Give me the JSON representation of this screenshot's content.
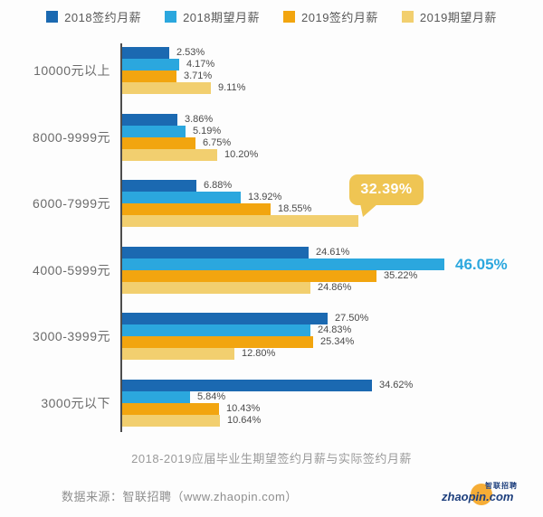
{
  "legend": {
    "items": [
      {
        "label": "2018签约月薪",
        "color": "#1B69B1"
      },
      {
        "label": "2018期望月薪",
        "color": "#2BA7DE"
      },
      {
        "label": "2019签约月薪",
        "color": "#F2A50F"
      },
      {
        "label": "2019期望月薪",
        "color": "#F2CF6F"
      }
    ]
  },
  "chart_data": {
    "type": "bar",
    "orientation": "horizontal",
    "title": "2018-2019应届毕业生期望签约月薪与实际签约月薪",
    "value_suffix": "%",
    "axis": "category-axis-left, no gridlines, value labels at bar ends",
    "categories": [
      "10000元以上",
      "8000-9999元",
      "6000-7999元",
      "4000-5999元",
      "3000-3999元",
      "3000元以下"
    ],
    "series": [
      {
        "name": "2018签约月薪",
        "color": "#1B69B1",
        "values": [
          2.53,
          3.86,
          6.88,
          24.61,
          27.5,
          34.62
        ]
      },
      {
        "name": "2018期望月薪",
        "color": "#2BA7DE",
        "values": [
          4.17,
          5.19,
          13.92,
          46.05,
          24.83,
          5.84
        ]
      },
      {
        "name": "2019签约月薪",
        "color": "#F2A50F",
        "values": [
          3.71,
          6.75,
          18.55,
          35.22,
          25.34,
          10.43
        ]
      },
      {
        "name": "2019期望月薪",
        "color": "#F2CF6F",
        "values": [
          9.11,
          10.2,
          32.39,
          24.86,
          12.8,
          10.64
        ]
      }
    ],
    "annotations": [
      {
        "type": "callout",
        "text": "32.39%",
        "category_index": 2,
        "series_index": 3,
        "color": "#EFC553",
        "text_color": "#ffffff"
      },
      {
        "type": "emphasis",
        "text": "46.05%",
        "category_index": 3,
        "series_index": 1,
        "text_color": "#2BA7DE"
      }
    ]
  },
  "caption": "2018-2019应届毕业生期望签约月薪与实际签约月薪",
  "footer": {
    "source": "数据来源：智联招聘（www.zhaopin.com）",
    "logo_cn": "智联招聘",
    "logo_en": "zhaopin.com"
  }
}
